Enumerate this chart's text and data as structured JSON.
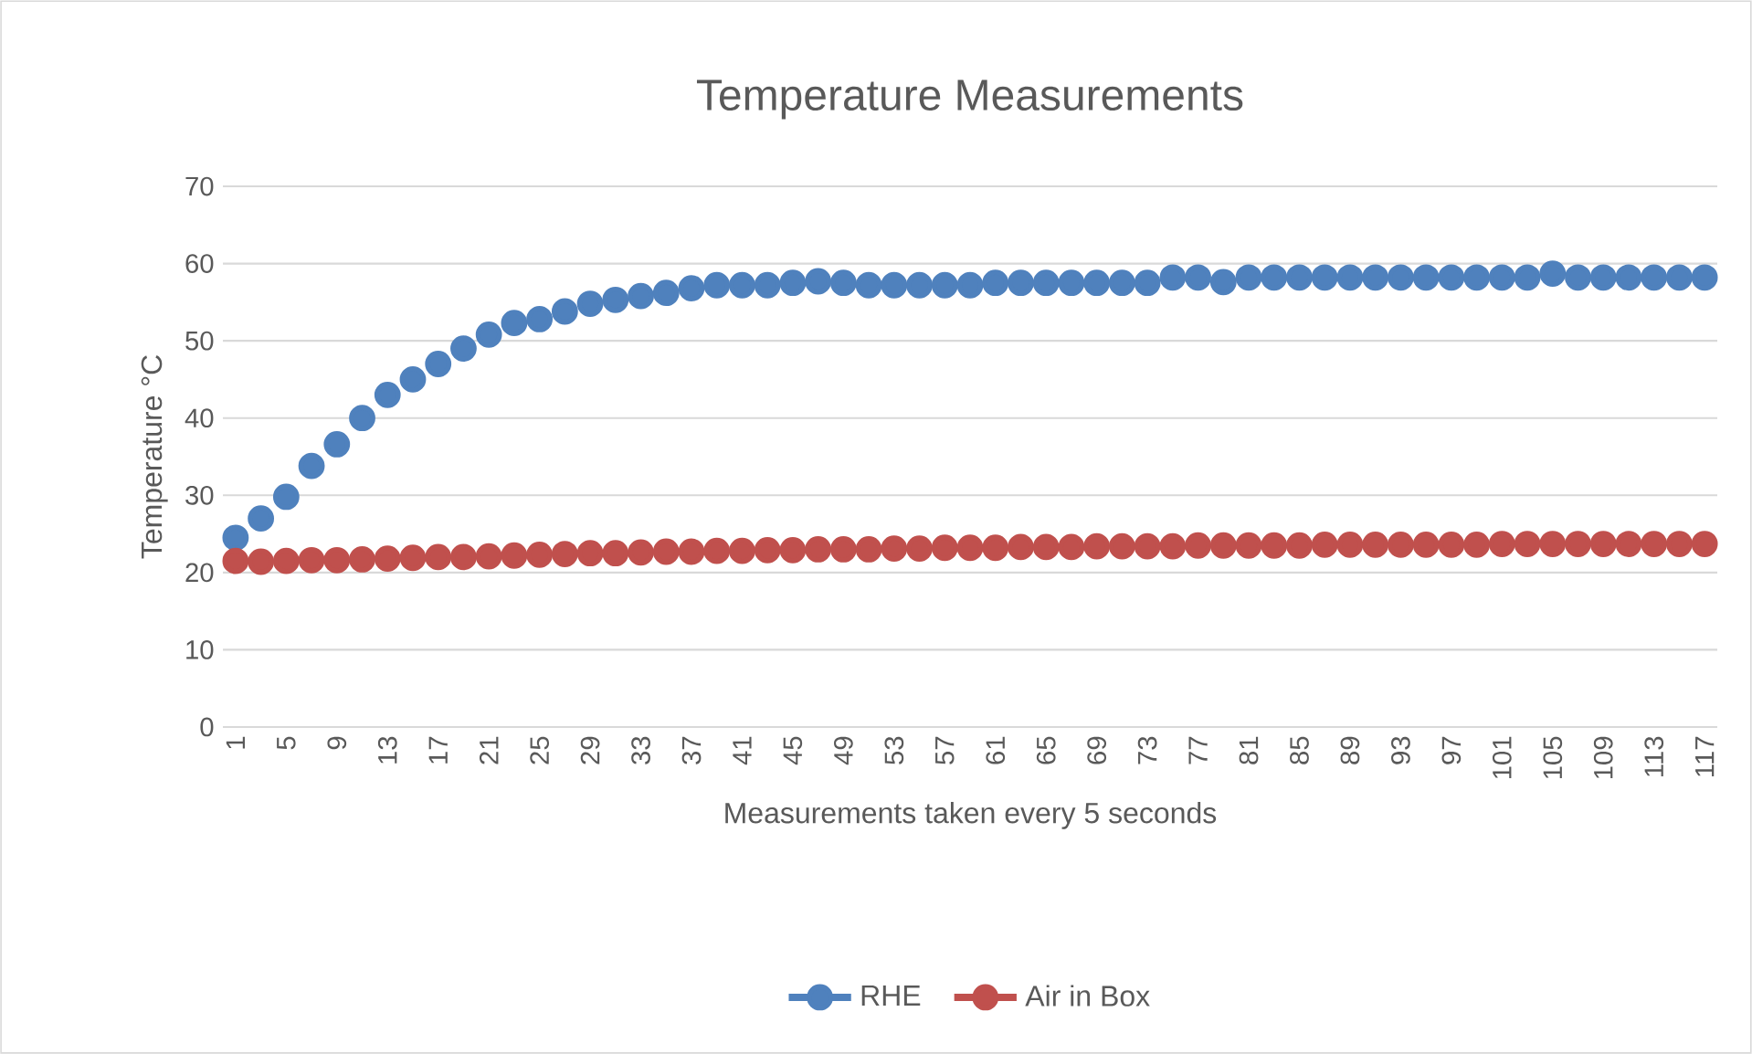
{
  "chart_data": {
    "type": "scatter",
    "title": "Temperature Measurements",
    "xlabel": "Measurements taken every 5 seconds",
    "ylabel": "Temperature °C",
    "categories": [
      "1",
      null,
      "5",
      null,
      "9",
      null,
      "13",
      null,
      "17",
      null,
      "21",
      null,
      "25",
      null,
      "29",
      null,
      "33",
      null,
      "37",
      null,
      "41",
      null,
      "45",
      null,
      "49",
      null,
      "53",
      null,
      "57",
      null,
      "61",
      null,
      "65",
      null,
      "69",
      null,
      "73",
      null,
      "77",
      null,
      "81",
      null,
      "85",
      null,
      "89",
      null,
      "93",
      null,
      "97",
      null,
      "101",
      null,
      "105",
      null,
      "109",
      null,
      "113",
      null,
      "117"
    ],
    "series": [
      {
        "name": "RHE",
        "color": "#4f81bd",
        "values": [
          24.5,
          27,
          29.8,
          33.8,
          36.6,
          40,
          43,
          45,
          47,
          49,
          50.8,
          52.3,
          52.8,
          53.8,
          54.8,
          55.3,
          55.8,
          56.2,
          56.8,
          57.2,
          57.2,
          57.2,
          57.5,
          57.7,
          57.5,
          57.2,
          57.2,
          57.2,
          57.2,
          57.2,
          57.5,
          57.5,
          57.5,
          57.5,
          57.5,
          57.5,
          57.5,
          58.2,
          58.2,
          57.6,
          58.2,
          58.2,
          58.2,
          58.2,
          58.2,
          58.2,
          58.2,
          58.2,
          58.2,
          58.2,
          58.2,
          58.2,
          58.7,
          58.2,
          58.2,
          58.2,
          58.2,
          58.2,
          58.2
        ]
      },
      {
        "name": "Air in Box",
        "color": "#c0504d",
        "values": [
          21.5,
          21.4,
          21.5,
          21.6,
          21.6,
          21.7,
          21.8,
          21.9,
          22,
          22,
          22.1,
          22.2,
          22.3,
          22.4,
          22.5,
          22.5,
          22.6,
          22.7,
          22.7,
          22.8,
          22.8,
          22.9,
          22.9,
          23,
          23,
          23,
          23.1,
          23.1,
          23.2,
          23.2,
          23.2,
          23.3,
          23.3,
          23.3,
          23.4,
          23.4,
          23.4,
          23.4,
          23.5,
          23.5,
          23.5,
          23.5,
          23.5,
          23.6,
          23.6,
          23.6,
          23.6,
          23.6,
          23.6,
          23.6,
          23.7,
          23.7,
          23.7,
          23.7,
          23.7,
          23.7,
          23.7,
          23.7,
          23.7
        ]
      }
    ],
    "ylim": [
      0,
      70
    ],
    "yticks": [
      0,
      10,
      20,
      30,
      40,
      50,
      60,
      70
    ],
    "grid": "y",
    "legend": "bottom",
    "marker": "circle"
  }
}
